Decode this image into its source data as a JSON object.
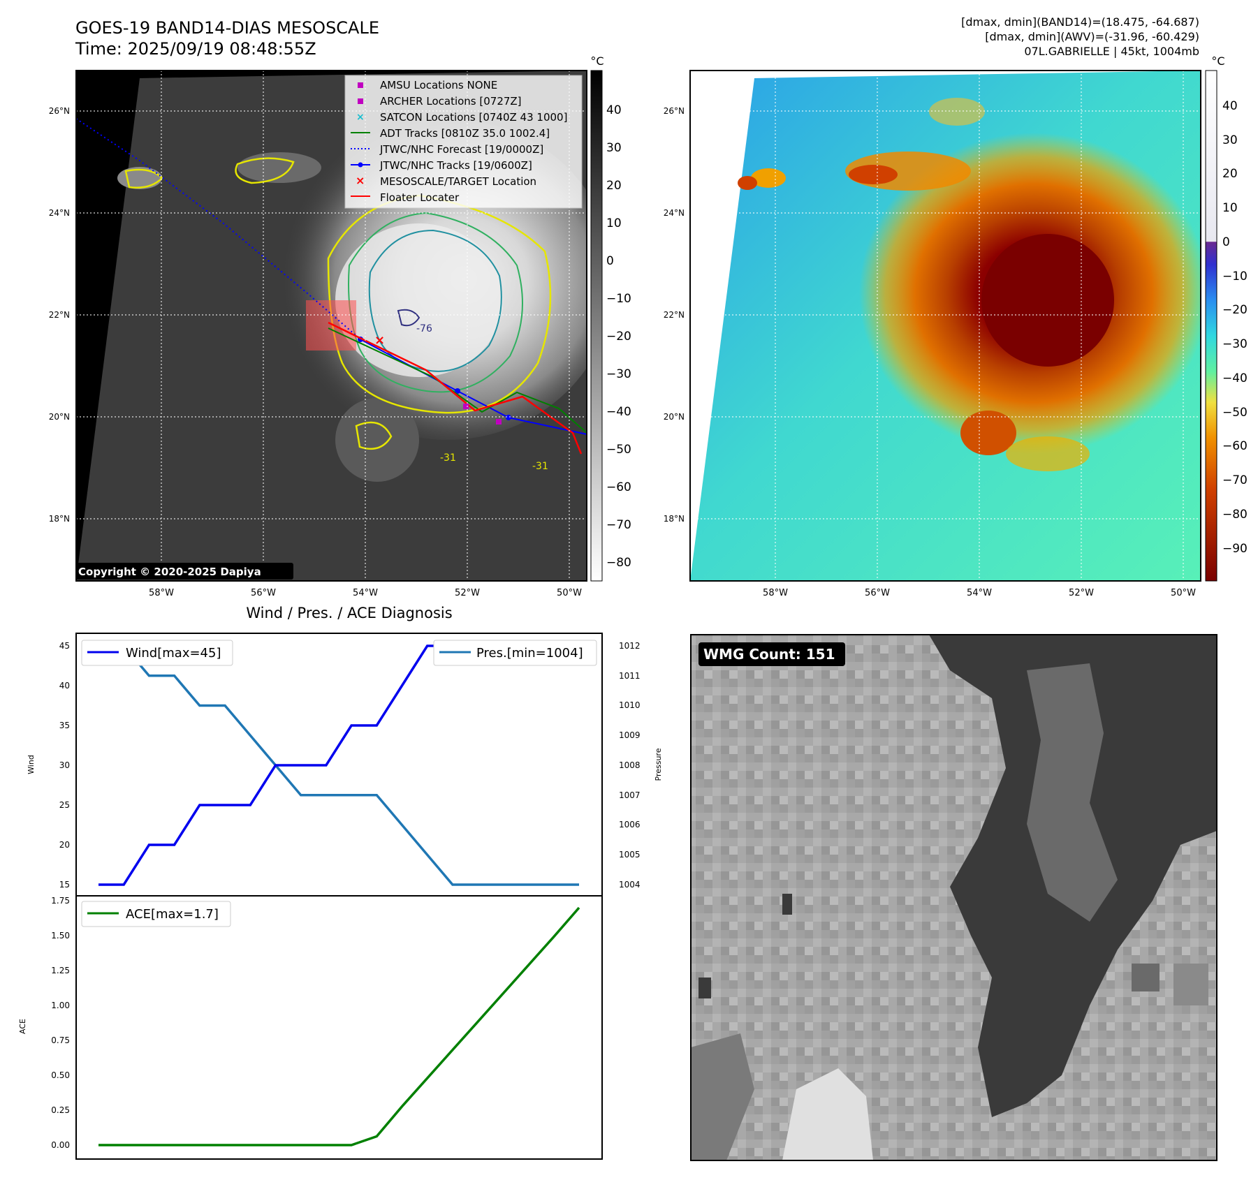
{
  "header": {
    "title": "GOES-19 BAND14-DIAS MESOSCALE",
    "time": "Time: 2025/09/19 08:48:55Z",
    "stat_line1": "[dmax, dmin](BAND14)=(18.475, -64.687)",
    "stat_line2": "[dmax, dmin](AWV)=(-31.96, -60.429)",
    "stat_line3": "07L.GABRIELLE | 45kt, 1004mb"
  },
  "map": {
    "lat_labels": [
      "26°N",
      "24°N",
      "22°N",
      "20°N",
      "18°N"
    ],
    "lon_labels": [
      "58°W",
      "56°W",
      "54°W",
      "52°W",
      "50°W"
    ],
    "copyright": "Copyright © 2020-2025 Dapiya",
    "contour_labels": [
      "-76",
      "-31",
      "-31"
    ],
    "legend": [
      {
        "label": "AMSU Locations NONE",
        "color": "#c000c0",
        "symbol": "square"
      },
      {
        "label": "ARCHER Locations [0727Z]",
        "color": "#c000c0",
        "symbol": "square"
      },
      {
        "label": "SATCON Locations [0740Z 43 1000]",
        "color": "#17becf",
        "symbol": "x"
      },
      {
        "label": "ADT Tracks [0810Z 35.0 1002.4]",
        "color": "#008000",
        "symbol": "line"
      },
      {
        "label": "JTWC/NHC Forecast [19/0000Z]",
        "color": "#0000ff",
        "symbol": "dotted"
      },
      {
        "label": "JTWC/NHC Tracks [19/0600Z]",
        "color": "#0000ff",
        "symbol": "line-dot"
      },
      {
        "label": "MESOSCALE/TARGET Location",
        "color": "#ff0000",
        "symbol": "x"
      },
      {
        "label": "Floater Locater",
        "color": "#ff0000",
        "symbol": "line"
      }
    ]
  },
  "colorbar_left": {
    "unit": "°C",
    "ticks": [
      "40",
      "30",
      "20",
      "10",
      "0",
      "−10",
      "−20",
      "−30",
      "−40",
      "−50",
      "−60",
      "−70",
      "−80"
    ]
  },
  "colorbar_right": {
    "unit": "°C",
    "ticks": [
      "40",
      "30",
      "20",
      "10",
      "0",
      "−10",
      "−20",
      "−30",
      "−40",
      "−50",
      "−60",
      "−70",
      "−80",
      "−90"
    ]
  },
  "wmg": {
    "label": "WMG Count: 151"
  },
  "chart_data": [
    {
      "type": "line",
      "title": "Wind / Pres. / ACE Diagnosis",
      "ylabel": "Wind",
      "y2label": "Pressure",
      "ylim": [
        14.5,
        45.5
      ],
      "y2lim": [
        1003.9,
        1012.1
      ],
      "yticks": [
        "45",
        "40",
        "35",
        "30",
        "25",
        "20",
        "15"
      ],
      "y2ticks": [
        "1012",
        "1011",
        "1010",
        "1009",
        "1008",
        "1007",
        "1006",
        "1005",
        "1004"
      ],
      "series": [
        {
          "name": "Wind[max=45]",
          "color": "#0000ee",
          "values": [
            15,
            15,
            20,
            20,
            25,
            25,
            25,
            30,
            30,
            30,
            35,
            35,
            40,
            45,
            45,
            45,
            45,
            45,
            45,
            45
          ]
        },
        {
          "name": "Pres.[min=1004]",
          "color": "#1f77b4",
          "values": [
            1012,
            1012,
            1011,
            1011,
            1010,
            1010,
            1009,
            1008,
            1007,
            1007,
            1007,
            1007,
            1006,
            1005,
            1004,
            1004,
            1004,
            1004,
            1004,
            1004
          ]
        }
      ]
    },
    {
      "type": "line",
      "ylabel": "ACE",
      "ylim": [
        -0.06,
        1.78
      ],
      "yticks": [
        "1.75",
        "1.50",
        "1.25",
        "1.00",
        "0.75",
        "0.50",
        "0.25",
        "0.00"
      ],
      "series": [
        {
          "name": "ACE[max=1.7]",
          "color": "#008000",
          "values": [
            0,
            0,
            0,
            0,
            0,
            0,
            0,
            0,
            0,
            0,
            0,
            0.0625,
            0.2763,
            0.4788,
            0.6813,
            0.8838,
            1.0863,
            1.2888,
            1.4913,
            1.7
          ]
        }
      ]
    }
  ]
}
